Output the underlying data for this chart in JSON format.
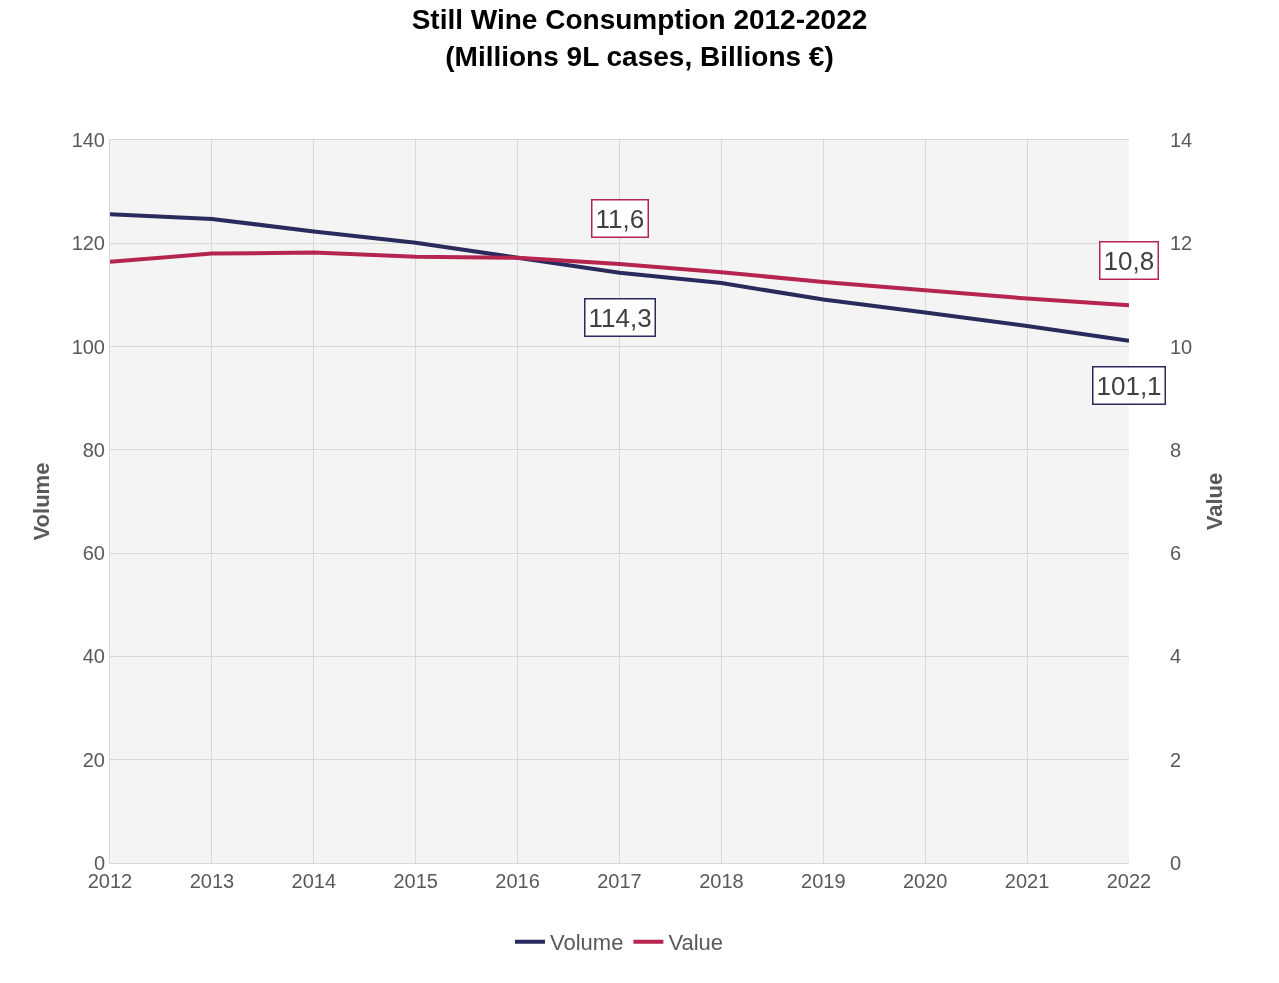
{
  "chart_data": {
    "type": "line",
    "title": "Still Wine Consumption 2012-2022",
    "subtitle": "(Millions 9L cases, Billions €)",
    "ylabel": "Volume",
    "y2label": "Value",
    "x": [
      2012,
      2013,
      2014,
      2015,
      2016,
      2017,
      2018,
      2019,
      2020,
      2021,
      2022
    ],
    "xlim": [
      2012,
      2022
    ],
    "xticks": [
      2012,
      2013,
      2014,
      2015,
      2016,
      2017,
      2018,
      2019,
      2020,
      2021,
      2022
    ],
    "ylim": [
      0,
      140
    ],
    "yticks": [
      0,
      20,
      40,
      60,
      80,
      100,
      120,
      140
    ],
    "y2lim": [
      0,
      14
    ],
    "y2ticks": [
      0,
      2,
      4,
      6,
      8,
      10,
      12,
      14
    ],
    "series": [
      {
        "name": "Volume",
        "color": "#2b2a5c",
        "values": [
          125.6,
          124.7,
          122.3,
          120.1,
          117.2,
          114.3,
          112.3,
          109.1,
          106.6,
          104.0,
          101.1
        ],
        "value_labels": [
          null,
          null,
          null,
          null,
          null,
          "114,3",
          null,
          null,
          null,
          null,
          "101,1"
        ]
      },
      {
        "name": "Value",
        "color": "#b5254f",
        "axis": "y2",
        "values": [
          11.64,
          11.8,
          11.82,
          11.74,
          11.72,
          11.6,
          11.44,
          11.25,
          11.09,
          10.93,
          10.8
        ],
        "value_labels": [
          null,
          null,
          null,
          null,
          null,
          "11,6",
          null,
          null,
          null,
          null,
          "10,8"
        ]
      }
    ],
    "grid": true,
    "legend": "bottom",
    "marker": "none",
    "line_style": "solid"
  }
}
